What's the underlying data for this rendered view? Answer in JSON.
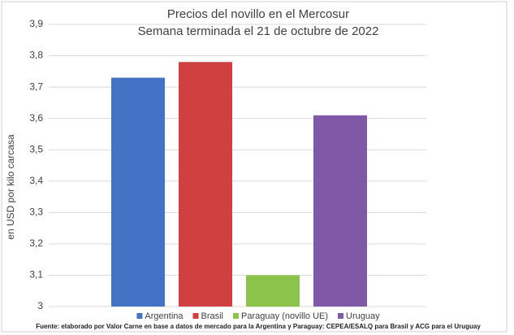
{
  "chart_data": {
    "type": "bar",
    "title": "Precios del novillo en el Mercosur",
    "subtitle": "Semana terminada el 21 de octubre de 2022",
    "y_label": "en USD por kilo carcasa",
    "series": [
      {
        "name": "Argentina",
        "color": "#4472c4",
        "values": [
          3.73
        ]
      },
      {
        "name": "Brasil",
        "color": "#d04040",
        "values": [
          3.78
        ]
      },
      {
        "name": "Paraguay (novillo UE)",
        "color": "#8cc34a",
        "values": [
          3.1
        ]
      },
      {
        "name": "Uruguay",
        "color": "#8058a8",
        "values": [
          3.61
        ]
      }
    ],
    "ylim": [
      3,
      3.9
    ],
    "yticks": [
      3,
      {
        "value": 3.1,
        "label": "3,1"
      },
      {
        "value": 3.2,
        "label": "3,2"
      },
      {
        "value": 3.3,
        "label": "3,3"
      },
      {
        "value": 3.4,
        "label": "3,4"
      },
      {
        "value": 3.5,
        "label": "3,5"
      },
      {
        "value": 3.6,
        "label": "3,6"
      },
      {
        "value": 3.7,
        "label": "3,7"
      },
      {
        "value": 3.8,
        "label": "3,8"
      },
      {
        "value": 3.9,
        "label": "3,9"
      }
    ],
    "grid": true,
    "legend": "bottom",
    "note": "Fuente: elaborado por Valor Carne en base a datos de mercado para la Argentina y Paraguay: CEPEA/ESALQ para Brasil y ACG para el Uruguay"
  }
}
